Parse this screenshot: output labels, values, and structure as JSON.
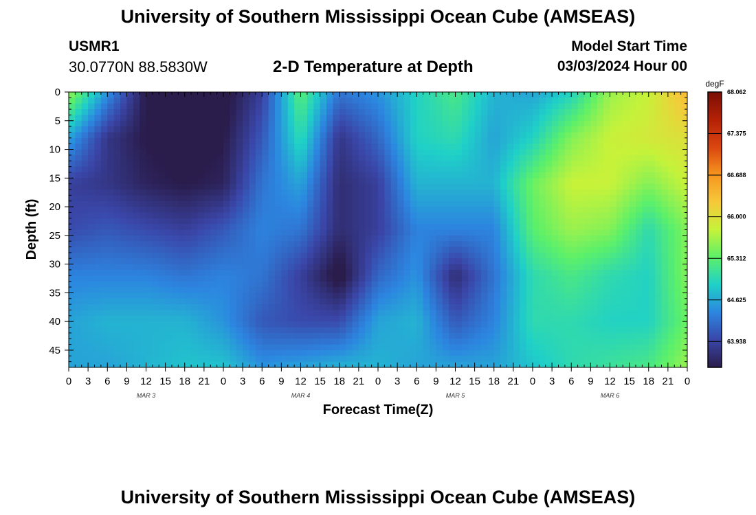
{
  "header": {
    "title": "University of Southern Mississippi Ocean Cube (AMSEAS)",
    "station_id": "USMR1",
    "coordinates": "30.0770N  88.5830W",
    "subtitle": "2-D Temperature at Depth",
    "model_start_label": "Model Start Time",
    "model_start_value": "03/03/2024 Hour 00"
  },
  "footer": {
    "title": "University of Southern Mississippi Ocean Cube (AMSEAS)"
  },
  "chart_data": {
    "type": "heatmap",
    "title": "2-D Temperature at Depth",
    "xlabel": "Forecast Time(Z)",
    "ylabel": "Depth (ft)",
    "x_unit": "hours since 03/03/2024 00Z",
    "xlim": [
      0,
      96
    ],
    "ylim": [
      0,
      48
    ],
    "y_inverted": true,
    "x_ticks": [
      0,
      3,
      6,
      9,
      12,
      15,
      18,
      21,
      24,
      27,
      30,
      33,
      36,
      39,
      42,
      45,
      48,
      51,
      54,
      57,
      60,
      63,
      66,
      69,
      72,
      75,
      78,
      81,
      84,
      87,
      90,
      93,
      96
    ],
    "x_tick_labels": [
      "0",
      "3",
      "6",
      "9",
      "12",
      "15",
      "18",
      "21",
      "0",
      "3",
      "6",
      "9",
      "12",
      "15",
      "18",
      "21",
      "0",
      "3",
      "6",
      "9",
      "12",
      "15",
      "18",
      "21",
      "0",
      "3",
      "6",
      "9",
      "12",
      "15",
      "18",
      "21",
      "0"
    ],
    "day_labels": [
      {
        "hour": 12,
        "label": "MAR 3"
      },
      {
        "hour": 36,
        "label": "MAR 4"
      },
      {
        "hour": 60,
        "label": "MAR 5"
      },
      {
        "hour": 84,
        "label": "MAR 6"
      }
    ],
    "y_ticks": [
      0,
      5,
      10,
      15,
      20,
      25,
      30,
      35,
      40,
      45
    ],
    "x_grid": [
      0,
      6,
      12,
      18,
      24,
      30,
      36,
      42,
      48,
      54,
      60,
      66,
      72,
      78,
      84,
      90,
      96
    ],
    "y_grid": [
      0,
      8,
      16,
      24,
      32,
      40,
      48
    ],
    "z": [
      [
        65.6,
        64.5,
        63.5,
        63.3,
        63.4,
        63.9,
        65.3,
        64.3,
        64.5,
        64.9,
        65.2,
        64.7,
        64.6,
        64.9,
        65.6,
        65.8,
        66.4
      ],
      [
        64.6,
        63.8,
        63.5,
        63.4,
        63.5,
        64.1,
        65.0,
        63.8,
        64.2,
        64.9,
        65.0,
        64.6,
        64.9,
        65.5,
        65.8,
        65.9,
        66.0
      ],
      [
        63.9,
        63.8,
        63.6,
        63.5,
        63.6,
        64.3,
        64.6,
        63.7,
        63.9,
        64.7,
        64.7,
        64.7,
        65.4,
        65.8,
        65.8,
        65.5,
        65.8
      ],
      [
        64.0,
        64.1,
        64.0,
        63.9,
        64.1,
        64.4,
        64.3,
        63.7,
        63.9,
        64.4,
        64.4,
        64.4,
        65.3,
        65.6,
        65.5,
        65.0,
        65.5
      ],
      [
        64.4,
        64.4,
        64.4,
        64.3,
        64.4,
        64.3,
        63.9,
        63.4,
        64.2,
        64.5,
        63.7,
        64.3,
        65.0,
        65.2,
        65.0,
        64.9,
        65.5
      ],
      [
        64.6,
        64.7,
        64.7,
        64.7,
        64.5,
        64.1,
        64.0,
        64.0,
        64.6,
        64.7,
        64.1,
        64.4,
        65.0,
        65.0,
        64.9,
        64.9,
        65.4
      ],
      [
        64.6,
        64.6,
        64.7,
        64.8,
        64.8,
        64.5,
        64.6,
        64.7,
        64.7,
        64.6,
        64.6,
        64.6,
        64.8,
        65.0,
        65.1,
        65.2,
        65.6
      ]
    ],
    "colorbar": {
      "label": "degF",
      "min": 63.51,
      "max": 68.062,
      "ticks": [
        "68.062",
        "67.375",
        "66.688",
        "66.000",
        "65.312",
        "64.625",
        "63.938"
      ],
      "colormap": [
        "#2a1c4b",
        "#3a46a8",
        "#2c86e0",
        "#1fd0c8",
        "#5cf06a",
        "#c6f23a",
        "#f6c93a",
        "#f6951f",
        "#da4610",
        "#b42106",
        "#7a0e04"
      ]
    }
  }
}
